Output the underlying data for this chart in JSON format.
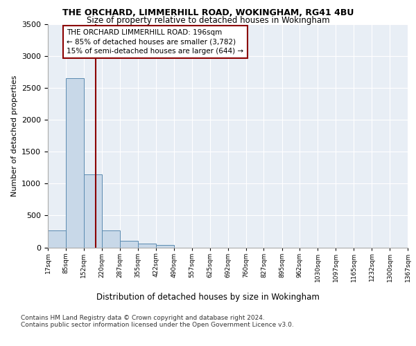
{
  "title1": "THE ORCHARD, LIMMERHILL ROAD, WOKINGHAM, RG41 4BU",
  "title2": "Size of property relative to detached houses in Wokingham",
  "xlabel": "Distribution of detached houses by size in Wokingham",
  "ylabel": "Number of detached properties",
  "bins": [
    17,
    85,
    152,
    220,
    287,
    355,
    422,
    490,
    557,
    625,
    692,
    760,
    827,
    895,
    962,
    1030,
    1097,
    1165,
    1232,
    1300,
    1367
  ],
  "bin_labels": [
    "17sqm",
    "85sqm",
    "152sqm",
    "220sqm",
    "287sqm",
    "355sqm",
    "422sqm",
    "490sqm",
    "557sqm",
    "625sqm",
    "692sqm",
    "760sqm",
    "827sqm",
    "895sqm",
    "962sqm",
    "1030sqm",
    "1097sqm",
    "1165sqm",
    "1232sqm",
    "1300sqm",
    "1367sqm"
  ],
  "counts": [
    270,
    2650,
    1150,
    270,
    100,
    60,
    35,
    0,
    0,
    0,
    0,
    0,
    0,
    0,
    0,
    0,
    0,
    0,
    0,
    0
  ],
  "bar_color": "#c8d8e8",
  "bar_edge_color": "#5a8ab0",
  "vline_x": 196,
  "vline_color": "#8b0000",
  "annotation_text": "THE ORCHARD LIMMERHILL ROAD: 196sqm\n← 85% of detached houses are smaller (3,782)\n15% of semi-detached houses are larger (644) →",
  "annotation_box_color": "#ffffff",
  "annotation_box_edge": "#8b0000",
  "ylim": [
    0,
    3500
  ],
  "yticks": [
    0,
    500,
    1000,
    1500,
    2000,
    2500,
    3000,
    3500
  ],
  "footer1": "Contains HM Land Registry data © Crown copyright and database right 2024.",
  "footer2": "Contains public sector information licensed under the Open Government Licence v3.0.",
  "bg_color": "#ffffff",
  "plot_bg_color": "#e8eef5"
}
